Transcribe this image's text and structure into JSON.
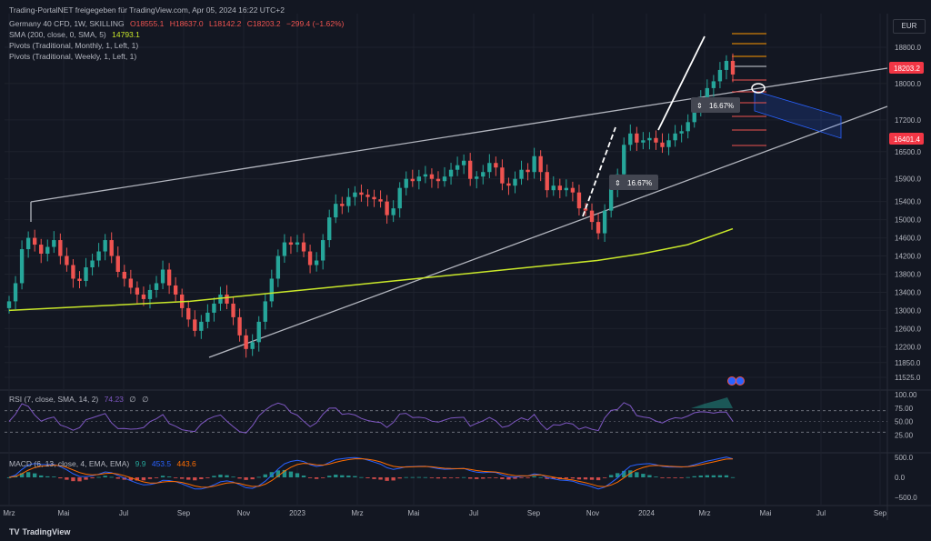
{
  "window": {
    "title": "Trading-PortalNET freigegeben für TradingView.com, Apr 05, 2024 16:22 UTC+2"
  },
  "legend": {
    "symbol": "Germany 40 CFD, 1W, SKILLING",
    "open": "O18555.1",
    "high": "H18637.0",
    "low": "L18142.2",
    "close": "C18203.2",
    "change": "−299.4 (−1.62%)",
    "sma_label": "SMA (200, close, 0, SMA, 5)",
    "sma_value": "14793.1",
    "pivots_monthly": "Pivots (Traditional, Monthly, 1, Left, 1)",
    "pivots_weekly": "Pivots (Traditional, Weekly, 1, Left, 1)"
  },
  "currency": "EUR",
  "price_axis": {
    "ticks": [
      "18800.0",
      "18000.0",
      "17200.0",
      "16500.0",
      "15900.0",
      "15400.0",
      "15000.0",
      "14600.0",
      "14200.0",
      "13800.0",
      "13400.0",
      "13000.0",
      "12600.0",
      "12200.0",
      "11850.0",
      "11525.0"
    ],
    "last_price": "18203.2",
    "marker_price": "16401.4"
  },
  "time_axis": [
    "Mrz",
    "Mai",
    "Jul",
    "Sep",
    "Nov",
    "2023",
    "Mrz",
    "Mai",
    "Jul",
    "Sep",
    "Nov",
    "2024",
    "Mrz",
    "Mai",
    "Jul",
    "Sep"
  ],
  "annotations": {
    "measure_1": "16.67%",
    "measure_2": "16.67%"
  },
  "rsi": {
    "label": "RSI (7, close, SMA, 14, 2)",
    "value": "74.23",
    "empty1": "∅",
    "empty2": "∅",
    "ticks": [
      "100.00",
      "75.00",
      "50.00",
      "25.00"
    ]
  },
  "macd": {
    "label": "MACD (6, 13, close, 4, EMA, EMA)",
    "hist": "9.9",
    "macd": "453.5",
    "signal": "443.6",
    "ticks": [
      "500.0",
      "0.0",
      "−500.0"
    ]
  },
  "branding": {
    "logo_text": "TradingView",
    "logo_mark": "TV"
  },
  "colors": {
    "up": "#26a69a",
    "down": "#ef5350",
    "sma": "#c8e62a",
    "rsi": "#7e57c2",
    "macd": "#2962ff",
    "signal": "#ff6d00",
    "bg": "#131722"
  },
  "chart_data": {
    "type": "candlestick",
    "timeframe": "1W",
    "candles_close": [
      13200,
      13600,
      14350,
      14600,
      14450,
      14250,
      14400,
      14550,
      14200,
      14000,
      13700,
      13650,
      13950,
      14100,
      14300,
      14550,
      14200,
      13850,
      13700,
      13500,
      13350,
      13250,
      13450,
      13600,
      13900,
      13550,
      13350,
      13050,
      12800,
      12550,
      12750,
      12950,
      13150,
      13350,
      13150,
      12850,
      12450,
      12150,
      12300,
      12750,
      13200,
      13700,
      14200,
      14500,
      14450,
      14500,
      14300,
      14000,
      14100,
      14550,
      15050,
      15350,
      15300,
      15500,
      15600,
      15550,
      15500,
      15450,
      15400,
      15100,
      15250,
      15700,
      15900,
      15850,
      15950,
      16000,
      15900,
      15850,
      15950,
      16100,
      16200,
      16300,
      15900,
      15950,
      16050,
      16250,
      16150,
      15800,
      15750,
      15900,
      16100,
      16050,
      16400,
      16050,
      15650,
      15750,
      15650,
      15700,
      15600,
      15250,
      15200,
      14950,
      14700,
      15200,
      15700,
      16000,
      16650,
      16900,
      16700,
      16750,
      16800,
      16700,
      16600,
      16750,
      16900,
      16950,
      17150,
      17450,
      17700,
      17900,
      18050,
      18300,
      18500,
      18200
    ],
    "sma200": [
      13000,
      13050,
      13100,
      13150,
      13200,
      13300,
      13400,
      13500,
      13600,
      13700,
      13800,
      13900,
      14000,
      14100,
      14250,
      14450,
      14800
    ],
    "rsi_range": [
      0,
      100
    ],
    "macd_range": [
      -500,
      500
    ]
  }
}
